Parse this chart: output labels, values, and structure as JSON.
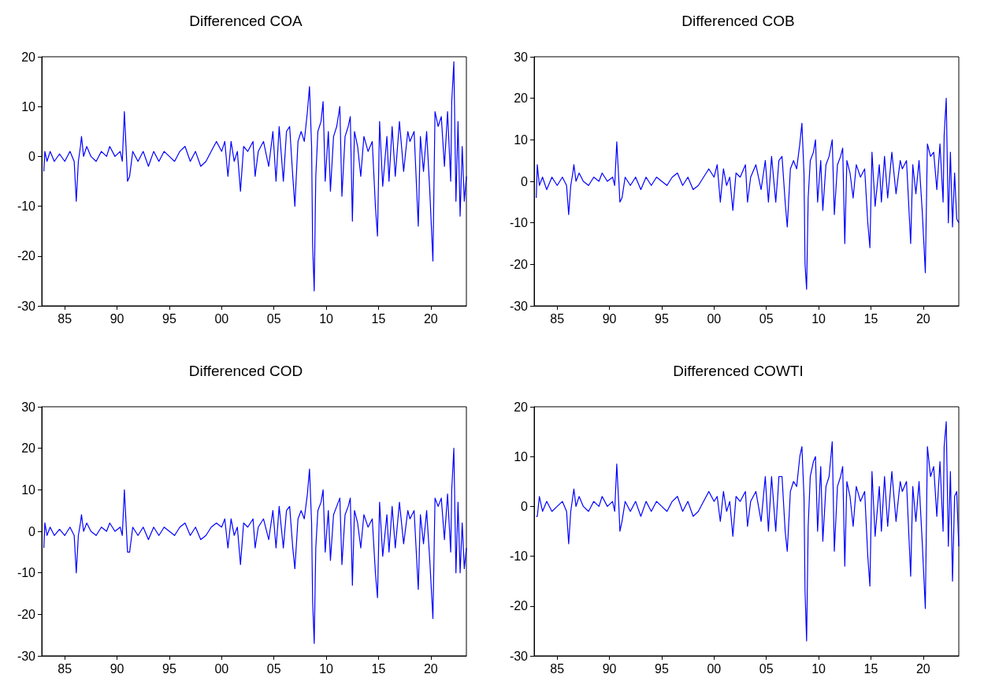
{
  "chart_data": [
    {
      "type": "line",
      "title": "Differenced COA",
      "xlim": [
        1982.8,
        2023.4
      ],
      "ylim": [
        -30,
        20
      ],
      "yticks": [
        -30,
        -20,
        -10,
        0,
        10,
        20
      ],
      "xticks": [
        {
          "value": 1985,
          "label": "85"
        },
        {
          "value": 1990,
          "label": "90"
        },
        {
          "value": 1995,
          "label": "95"
        },
        {
          "value": 2000,
          "label": "00"
        },
        {
          "value": 2005,
          "label": "05"
        },
        {
          "value": 2010,
          "label": "10"
        },
        {
          "value": 2015,
          "label": "15"
        },
        {
          "value": 2020,
          "label": "20"
        }
      ],
      "grid": false,
      "marker": "none",
      "line_style": "solid",
      "x": [
        1983.0,
        1983.1,
        1983.3,
        1983.6,
        1984,
        1984.5,
        1985,
        1985.5,
        1985.9,
        1986.1,
        1986.3,
        1986.5,
        1986.6,
        1986.8,
        1987.1,
        1987.5,
        1988,
        1988.5,
        1989,
        1989.3,
        1989.8,
        1990.3,
        1990.5,
        1990.7,
        1990.9,
        1991.0,
        1991.2,
        1991.5,
        1992,
        1992.5,
        1993,
        1993.5,
        1994,
        1994.5,
        1995,
        1995.5,
        1996,
        1996.5,
        1997,
        1997.5,
        1998,
        1998.5,
        1999,
        1999.5,
        2000,
        2000.3,
        2000.6,
        2000.9,
        2001.2,
        2001.5,
        2001.8,
        2002.1,
        2002.5,
        2003.0,
        2003.2,
        2003.5,
        2004,
        2004.5,
        2004.9,
        2005.2,
        2005.5,
        2005.9,
        2006.2,
        2006.5,
        2006.8,
        2007.0,
        2007.3,
        2007.6,
        2007.9,
        2008.2,
        2008.4,
        2008.6,
        2008.7,
        2008.85,
        2009.0,
        2009.2,
        2009.5,
        2009.7,
        2009.9,
        2010.2,
        2010.4,
        2010.7,
        2011.0,
        2011.3,
        2011.5,
        2011.8,
        2012.1,
        2012.3,
        2012.5,
        2012.7,
        2013.0,
        2013.3,
        2013.6,
        2014.0,
        2014.4,
        2014.7,
        2014.9,
        2015.1,
        2015.4,
        2015.8,
        2016.0,
        2016.3,
        2016.6,
        2017.0,
        2017.4,
        2017.8,
        2018.0,
        2018.4,
        2018.8,
        2019.0,
        2019.3,
        2019.6,
        2019.9,
        2020.2,
        2020.4,
        2020.7,
        2021.0,
        2021.3,
        2021.6,
        2021.9,
        2022.0,
        2022.2,
        2022.4,
        2022.6,
        2022.8,
        2023.0,
        2023.2,
        2023.4
      ],
      "series": [
        {
          "color": "#0000ff",
          "values": [
            -3,
            1,
            -1,
            1,
            -1,
            0.5,
            -1,
            1,
            -1,
            -9,
            -1,
            2,
            4,
            0,
            2,
            0,
            -1,
            1,
            0,
            2,
            0,
            1,
            -1,
            9,
            0,
            -5,
            -4,
            1,
            -1,
            1,
            -2,
            1,
            -1,
            1,
            0,
            -1,
            1,
            2,
            -1,
            1,
            -2,
            -1,
            1,
            3,
            1,
            3,
            -4,
            3,
            -1,
            1,
            -7,
            2,
            1,
            3,
            -4,
            1,
            3,
            -2,
            5,
            -5,
            6,
            -5,
            5,
            6,
            -4,
            -10,
            3,
            5,
            3,
            9,
            14,
            2,
            -18,
            -27,
            -4,
            5,
            7,
            11,
            -5,
            5,
            -7,
            4,
            6,
            10,
            -8,
            4,
            6,
            8,
            -13,
            5,
            2,
            -4,
            4,
            1,
            3,
            -10,
            -16,
            7,
            -6,
            4,
            -5,
            6,
            -4,
            7,
            -3,
            5,
            3,
            5,
            -14,
            4,
            -3,
            5,
            -7,
            -21,
            9,
            6,
            8,
            -2,
            9,
            -5,
            11,
            19,
            -9,
            7,
            -12,
            2,
            -9,
            -4
          ]
        }
      ]
    },
    {
      "type": "line",
      "title": "Differenced COB",
      "xlim": [
        1982.8,
        2023.4
      ],
      "ylim": [
        -30,
        30
      ],
      "yticks": [
        -30,
        -20,
        -10,
        0,
        10,
        20,
        30
      ],
      "xticks": [
        {
          "value": 1985,
          "label": "85"
        },
        {
          "value": 1990,
          "label": "90"
        },
        {
          "value": 1995,
          "label": "95"
        },
        {
          "value": 2000,
          "label": "00"
        },
        {
          "value": 2005,
          "label": "05"
        },
        {
          "value": 2010,
          "label": "10"
        },
        {
          "value": 2015,
          "label": "15"
        },
        {
          "value": 2020,
          "label": "20"
        }
      ],
      "grid": false,
      "marker": "none",
      "line_style": "solid",
      "x": [
        1983.0,
        1983.1,
        1983.3,
        1983.6,
        1984,
        1984.5,
        1985,
        1985.5,
        1985.9,
        1986.1,
        1986.3,
        1986.5,
        1986.6,
        1986.8,
        1987.1,
        1987.5,
        1988,
        1988.5,
        1989,
        1989.3,
        1989.8,
        1990.3,
        1990.5,
        1990.7,
        1990.9,
        1991.0,
        1991.2,
        1991.5,
        1992,
        1992.5,
        1993,
        1993.5,
        1994,
        1994.5,
        1995,
        1995.5,
        1996,
        1996.5,
        1997,
        1997.5,
        1998,
        1998.5,
        1999,
        1999.5,
        2000,
        2000.3,
        2000.6,
        2000.9,
        2001.2,
        2001.5,
        2001.8,
        2002.1,
        2002.5,
        2003.0,
        2003.2,
        2003.5,
        2004,
        2004.5,
        2004.9,
        2005.2,
        2005.5,
        2005.9,
        2006.2,
        2006.5,
        2006.8,
        2007.0,
        2007.3,
        2007.6,
        2007.9,
        2008.2,
        2008.4,
        2008.6,
        2008.7,
        2008.85,
        2009.0,
        2009.2,
        2009.5,
        2009.7,
        2009.9,
        2010.2,
        2010.4,
        2010.7,
        2011.0,
        2011.3,
        2011.5,
        2011.8,
        2012.1,
        2012.3,
        2012.5,
        2012.7,
        2013.0,
        2013.3,
        2013.6,
        2014.0,
        2014.4,
        2014.7,
        2014.9,
        2015.1,
        2015.4,
        2015.8,
        2016.0,
        2016.3,
        2016.6,
        2017.0,
        2017.4,
        2017.8,
        2018.0,
        2018.4,
        2018.8,
        2019.0,
        2019.3,
        2019.6,
        2019.9,
        2020.2,
        2020.4,
        2020.7,
        2021.0,
        2021.3,
        2021.6,
        2021.9,
        2022.0,
        2022.2,
        2022.4,
        2022.6,
        2022.8,
        2023.0,
        2023.2,
        2023.4
      ],
      "series": [
        {
          "color": "#0000ff",
          "values": [
            -4,
            4,
            -1,
            1,
            -2,
            1,
            -1,
            1,
            -1,
            -8,
            -1,
            2,
            4,
            0,
            2,
            0,
            -1,
            1,
            0,
            2,
            0,
            1,
            -1,
            9.5,
            0,
            -5,
            -4,
            1,
            -1,
            1,
            -2,
            1,
            -1,
            1,
            0,
            -1,
            1,
            2,
            -1,
            1,
            -2,
            -1,
            1,
            3,
            1,
            4,
            -5,
            3,
            -1,
            1,
            -7,
            2,
            1,
            4,
            -5,
            1,
            4,
            -2,
            5,
            -5,
            6,
            -5,
            5,
            6,
            -5,
            -11,
            3,
            5,
            3,
            9,
            14,
            2,
            -20,
            -26,
            -4,
            5,
            7,
            10,
            -5,
            5,
            -7,
            4,
            6,
            10,
            -8,
            4,
            6,
            8,
            -15,
            5,
            2,
            -4,
            4,
            1,
            3,
            -10,
            -16,
            7,
            -6,
            4,
            -5,
            6,
            -4,
            7,
            -3,
            5,
            3,
            5,
            -15,
            4,
            -3,
            5,
            -7,
            -22,
            9,
            6,
            7,
            -2,
            9,
            -5,
            11,
            20,
            -10,
            7,
            -11,
            2,
            -9,
            -10
          ]
        }
      ]
    },
    {
      "type": "line",
      "title": "Differenced COD",
      "xlim": [
        1982.8,
        2023.4
      ],
      "ylim": [
        -30,
        30
      ],
      "yticks": [
        -30,
        -20,
        -10,
        0,
        10,
        20,
        30
      ],
      "xticks": [
        {
          "value": 1985,
          "label": "85"
        },
        {
          "value": 1990,
          "label": "90"
        },
        {
          "value": 1995,
          "label": "95"
        },
        {
          "value": 2000,
          "label": "00"
        },
        {
          "value": 2005,
          "label": "05"
        },
        {
          "value": 2010,
          "label": "10"
        },
        {
          "value": 2015,
          "label": "15"
        },
        {
          "value": 2020,
          "label": "20"
        }
      ],
      "grid": false,
      "marker": "none",
      "line_style": "solid",
      "x": [
        1983.0,
        1983.1,
        1983.3,
        1983.6,
        1984,
        1984.5,
        1985,
        1985.5,
        1985.9,
        1986.1,
        1986.3,
        1986.5,
        1986.6,
        1986.8,
        1987.1,
        1987.5,
        1988,
        1988.5,
        1989,
        1989.3,
        1989.8,
        1990.3,
        1990.5,
        1990.7,
        1990.9,
        1991.0,
        1991.2,
        1991.5,
        1992,
        1992.5,
        1993,
        1993.5,
        1994,
        1994.5,
        1995,
        1995.5,
        1996,
        1996.5,
        1997,
        1997.5,
        1998,
        1998.5,
        1999,
        1999.5,
        2000,
        2000.3,
        2000.6,
        2000.9,
        2001.2,
        2001.5,
        2001.8,
        2002.1,
        2002.5,
        2003.0,
        2003.2,
        2003.5,
        2004,
        2004.5,
        2004.9,
        2005.2,
        2005.5,
        2005.9,
        2006.2,
        2006.5,
        2006.8,
        2007.0,
        2007.3,
        2007.6,
        2007.9,
        2008.2,
        2008.4,
        2008.6,
        2008.7,
        2008.85,
        2009.0,
        2009.2,
        2009.5,
        2009.7,
        2009.9,
        2010.2,
        2010.4,
        2010.7,
        2011.0,
        2011.3,
        2011.5,
        2011.8,
        2012.1,
        2012.3,
        2012.5,
        2012.7,
        2013.0,
        2013.3,
        2013.6,
        2014.0,
        2014.4,
        2014.7,
        2014.9,
        2015.1,
        2015.4,
        2015.8,
        2016.0,
        2016.3,
        2016.6,
        2017.0,
        2017.4,
        2017.8,
        2018.0,
        2018.4,
        2018.8,
        2019.0,
        2019.3,
        2019.6,
        2019.9,
        2020.2,
        2020.4,
        2020.7,
        2021.0,
        2021.3,
        2021.6,
        2021.9,
        2022.0,
        2022.2,
        2022.4,
        2022.6,
        2022.8,
        2023.0,
        2023.2,
        2023.4
      ],
      "series": [
        {
          "color": "#0000ff",
          "values": [
            -4,
            2,
            -1,
            1,
            -1,
            0.5,
            -1,
            1,
            -1,
            -10,
            -1,
            2,
            4,
            0,
            2,
            0,
            -1,
            1,
            0,
            2,
            0,
            1,
            -1,
            10,
            0,
            -5,
            -5,
            1,
            -1,
            1,
            -2,
            1,
            -1,
            1,
            0,
            -1,
            1,
            2,
            -1,
            1,
            -2,
            -1,
            1,
            2,
            1,
            3,
            -4,
            3,
            -1,
            1,
            -8,
            2,
            1,
            3,
            -4,
            1,
            3,
            -2,
            5,
            -4,
            6,
            -4,
            5,
            6,
            -4,
            -9,
            3,
            5,
            3,
            9,
            15,
            2,
            -17,
            -27,
            -4,
            5,
            7,
            10,
            -5,
            5,
            -7,
            4,
            6,
            8,
            -8,
            4,
            6,
            8,
            -13,
            5,
            2,
            -4,
            4,
            1,
            3,
            -10,
            -16,
            7,
            -6,
            4,
            -5,
            6,
            -4,
            7,
            -3,
            5,
            3,
            5,
            -14,
            4,
            -3,
            5,
            -7,
            -21,
            8,
            6,
            8,
            -2,
            9,
            -5,
            10,
            20,
            -10,
            7,
            -10,
            2,
            -9,
            -4
          ]
        }
      ]
    },
    {
      "type": "line",
      "title": "Differenced COWTI",
      "xlim": [
        1982.8,
        2023.4
      ],
      "ylim": [
        -30,
        20
      ],
      "yticks": [
        -30,
        -20,
        -10,
        0,
        10,
        20
      ],
      "xticks": [
        {
          "value": 1985,
          "label": "85"
        },
        {
          "value": 1990,
          "label": "90"
        },
        {
          "value": 1995,
          "label": "95"
        },
        {
          "value": 2000,
          "label": "00"
        },
        {
          "value": 2005,
          "label": "05"
        },
        {
          "value": 2010,
          "label": "10"
        },
        {
          "value": 2015,
          "label": "15"
        },
        {
          "value": 2020,
          "label": "20"
        }
      ],
      "grid": false,
      "marker": "none",
      "line_style": "solid",
      "x": [
        1983.0,
        1983.1,
        1983.3,
        1983.6,
        1984,
        1984.5,
        1985,
        1985.5,
        1985.9,
        1986.1,
        1986.3,
        1986.5,
        1986.6,
        1986.8,
        1987.1,
        1987.5,
        1988,
        1988.5,
        1989,
        1989.3,
        1989.8,
        1990.3,
        1990.5,
        1990.7,
        1990.9,
        1991.0,
        1991.2,
        1991.5,
        1992,
        1992.5,
        1993,
        1993.5,
        1994,
        1994.5,
        1995,
        1995.5,
        1996,
        1996.5,
        1997,
        1997.5,
        1998,
        1998.5,
        1999,
        1999.5,
        2000,
        2000.3,
        2000.6,
        2000.9,
        2001.2,
        2001.5,
        2001.8,
        2002.1,
        2002.5,
        2003.0,
        2003.2,
        2003.5,
        2004,
        2004.5,
        2004.9,
        2005.2,
        2005.5,
        2005.9,
        2006.2,
        2006.5,
        2006.8,
        2007.0,
        2007.3,
        2007.6,
        2007.9,
        2008.2,
        2008.4,
        2008.6,
        2008.7,
        2008.85,
        2009.0,
        2009.2,
        2009.5,
        2009.7,
        2009.9,
        2010.2,
        2010.4,
        2010.7,
        2011.0,
        2011.3,
        2011.5,
        2011.8,
        2012.1,
        2012.3,
        2012.5,
        2012.7,
        2013.0,
        2013.3,
        2013.6,
        2014.0,
        2014.4,
        2014.7,
        2014.9,
        2015.1,
        2015.4,
        2015.8,
        2016.0,
        2016.3,
        2016.6,
        2017.0,
        2017.4,
        2017.8,
        2018.0,
        2018.4,
        2018.8,
        2019.0,
        2019.3,
        2019.6,
        2019.9,
        2020.2,
        2020.4,
        2020.7,
        2021.0,
        2021.3,
        2021.6,
        2021.9,
        2022.0,
        2022.2,
        2022.4,
        2022.6,
        2022.8,
        2023.0,
        2023.2,
        2023.4
      ],
      "series": [
        {
          "color": "#0000ff",
          "values": [
            -2,
            -2,
            2,
            -1,
            1,
            -1,
            0,
            1,
            -1,
            -7.5,
            -1,
            2,
            3.5,
            0,
            2,
            0,
            -1,
            1,
            0,
            2,
            0,
            1,
            -1,
            8.5,
            0,
            -5,
            -3,
            1,
            -1,
            1,
            -2,
            1,
            -1,
            1,
            0,
            -1,
            1,
            2,
            -1,
            1,
            -2,
            -1,
            1,
            3,
            1,
            2,
            -3,
            3,
            -1,
            1,
            -6,
            2,
            1,
            3,
            -4,
            1,
            3,
            -3,
            6,
            -5,
            6,
            -5,
            6,
            6,
            -5,
            -9,
            3,
            5,
            4,
            10,
            12,
            2,
            -17,
            -27,
            -4,
            6,
            9,
            10,
            -5,
            8,
            -7,
            4,
            6,
            13,
            -9,
            4,
            6,
            8,
            -12,
            5,
            2,
            -4,
            4,
            1,
            3,
            -10,
            -16,
            7,
            -6,
            4,
            -5,
            6,
            -4,
            7,
            -3,
            5,
            3,
            5,
            -14,
            4,
            -3,
            5,
            -7,
            -20.5,
            12,
            6,
            8,
            -2,
            9,
            -5,
            12,
            17,
            -8,
            7,
            -15,
            2,
            3,
            -8
          ]
        }
      ]
    }
  ]
}
